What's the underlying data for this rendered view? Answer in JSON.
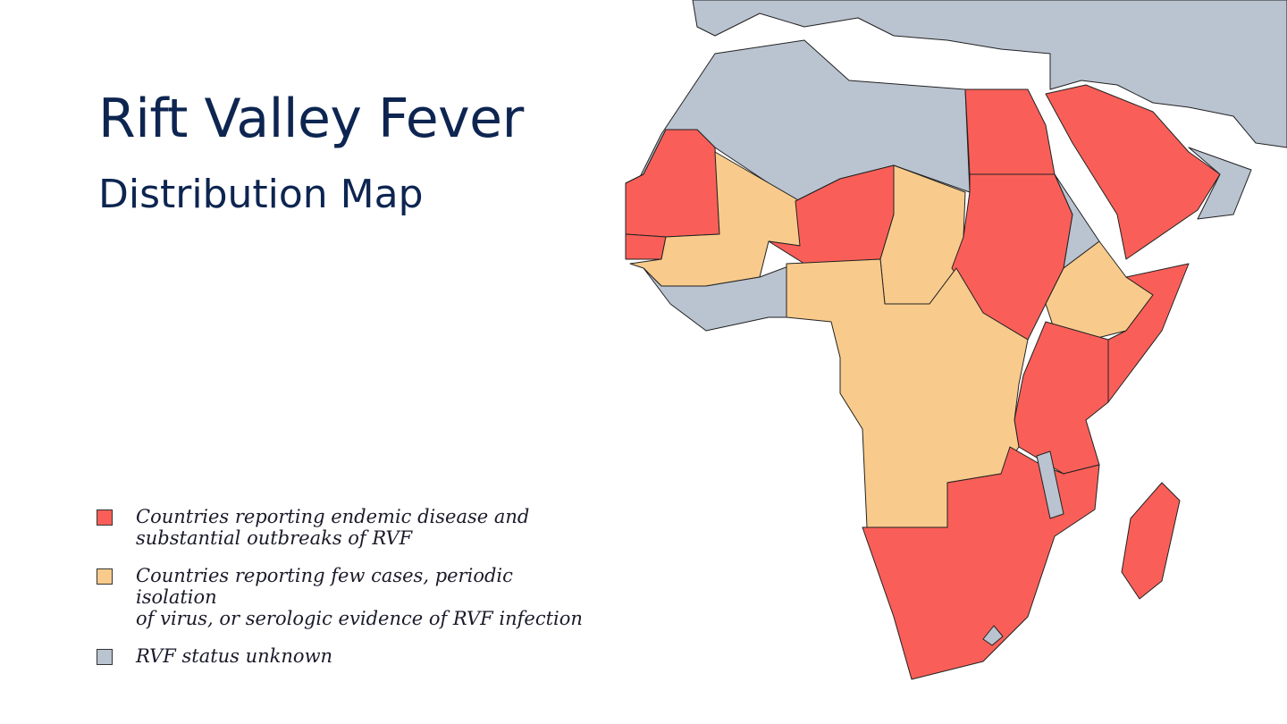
{
  "title": "Rift Valley Fever",
  "subtitle": "Distribution Map",
  "legend": {
    "items": [
      {
        "lines": [
          "Countries reporting endemic disease and",
          "substantial outbreaks of RVF"
        ],
        "color": "#f95f58"
      },
      {
        "lines": [
          "Countries reporting few cases, periodic isolation",
          "of virus, or serologic evidence of RVF infection"
        ],
        "color": "#f8cb8c"
      },
      {
        "lines": [
          "RVF status unknown"
        ],
        "color": "#bac3d0"
      }
    ]
  }
}
